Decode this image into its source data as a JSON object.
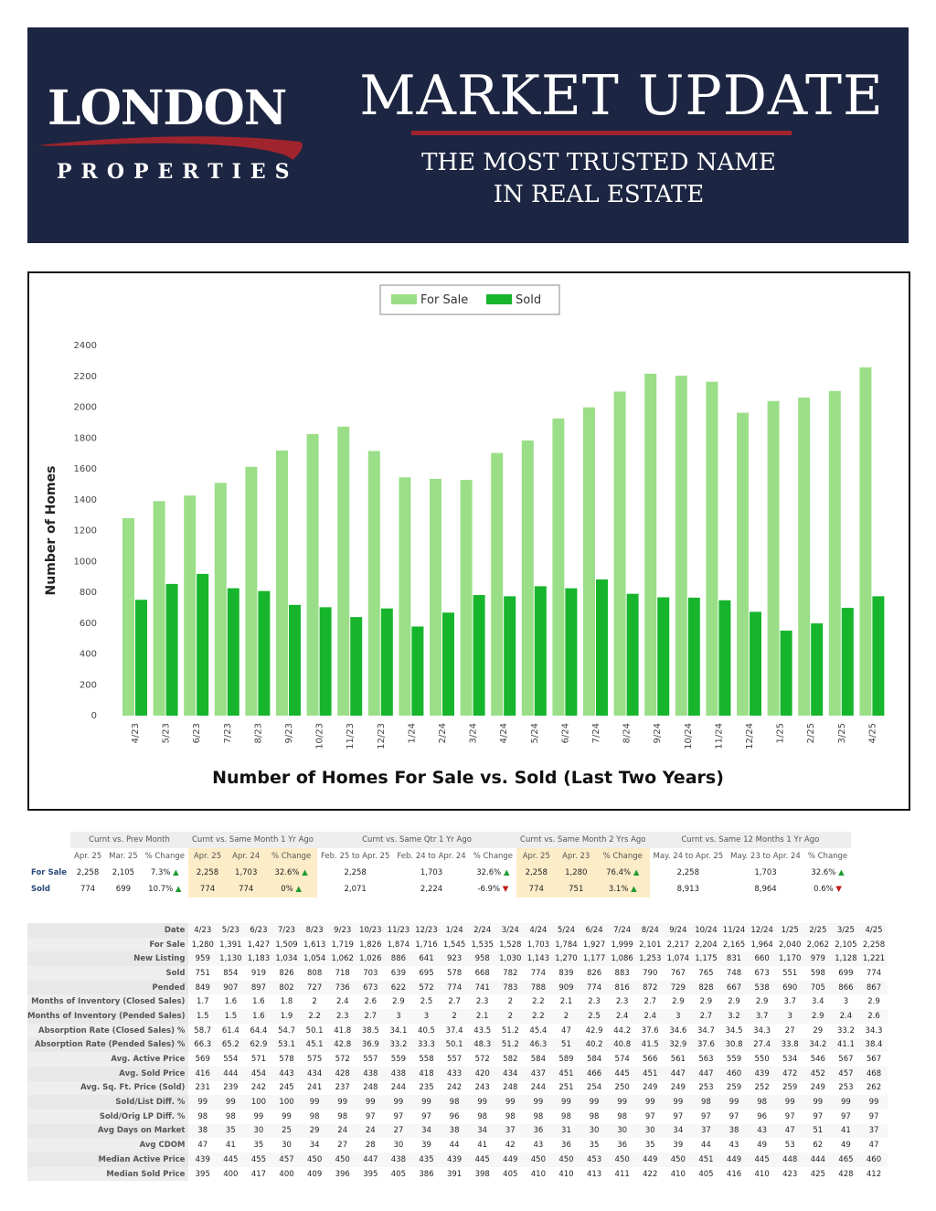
{
  "header": {
    "logo_main": "LONDON",
    "logo_sub": "PROPERTIES",
    "title": "MARKET UPDATE",
    "tagline_line1": "THE MOST TRUSTED NAME",
    "tagline_line2": "IN REAL ESTATE",
    "colors": {
      "banner": "#1c2541",
      "accent": "#a0242e"
    }
  },
  "chart_data": {
    "type": "bar",
    "title": "Number of Homes For Sale vs. Sold (Last Two Years)",
    "ylabel": "Number of Homes",
    "xlabel": "",
    "ylim": [
      0,
      2400
    ],
    "yticks": [
      0,
      200,
      400,
      600,
      800,
      1000,
      1200,
      1400,
      1600,
      1800,
      2000,
      2200,
      2400
    ],
    "legend_position": "top-center",
    "grid": false,
    "categories": [
      "4/23",
      "5/23",
      "6/23",
      "7/23",
      "8/23",
      "9/23",
      "10/23",
      "11/23",
      "12/23",
      "1/24",
      "2/24",
      "3/24",
      "4/24",
      "5/24",
      "6/24",
      "7/24",
      "8/24",
      "9/24",
      "10/24",
      "11/24",
      "12/24",
      "1/25",
      "2/25",
      "3/25",
      "4/25"
    ],
    "series": [
      {
        "name": "For Sale",
        "color": "#9bde88",
        "values": [
          1280,
          1391,
          1427,
          1509,
          1613,
          1719,
          1826,
          1874,
          1716,
          1545,
          1535,
          1528,
          1703,
          1784,
          1927,
          1999,
          2101,
          2217,
          2204,
          2165,
          1964,
          2040,
          2062,
          2105,
          2258
        ]
      },
      {
        "name": "Sold",
        "color": "#17b52c",
        "values": [
          751,
          854,
          919,
          826,
          808,
          718,
          703,
          639,
          695,
          578,
          668,
          782,
          774,
          839,
          826,
          883,
          790,
          767,
          765,
          748,
          673,
          551,
          598,
          699,
          774
        ]
      }
    ]
  },
  "comparison": {
    "groups": [
      "Curnt vs. Prev Month",
      "Curnt vs. Same Month 1 Yr Ago",
      "Curnt vs. Same Qtr 1 Yr Ago",
      "Curnt vs. Same Month 2 Yrs Ago",
      "Curnt vs. Same 12 Months 1 Yr Ago"
    ],
    "headers": [
      "Apr. 25",
      "Mar. 25",
      "% Change",
      "Apr. 25",
      "Apr. 24",
      "% Change",
      "Feb. 25 to Apr. 25",
      "Feb. 24 to Apr. 24",
      "% Change",
      "Apr. 25",
      "Apr. 23",
      "% Change",
      "May. 24 to Apr. 25",
      "May. 23 to Apr. 24",
      "% Change"
    ],
    "rows": [
      {
        "label": "For Sale",
        "cells": [
          "2,258",
          "2,105",
          "7.3%",
          "2,258",
          "1,703",
          "32.6%",
          "2,258",
          "1,703",
          "32.6%",
          "2,258",
          "1,280",
          "76.4%",
          "2,258",
          "1,703",
          "32.6%"
        ],
        "dirs": [
          "up",
          "up",
          "up",
          "up",
          "up"
        ]
      },
      {
        "label": "Sold",
        "cells": [
          "774",
          "699",
          "10.7%",
          "774",
          "774",
          "0%",
          "2,071",
          "2,224",
          "-6.9%",
          "774",
          "751",
          "3.1%",
          "8,913",
          "8,964",
          "0.6%"
        ],
        "dirs": [
          "up",
          "up",
          "down",
          "up",
          "down"
        ]
      }
    ]
  },
  "stats": {
    "header_label": "Date",
    "dates": [
      "4/23",
      "5/23",
      "6/23",
      "7/23",
      "8/23",
      "9/23",
      "10/23",
      "11/23",
      "12/23",
      "1/24",
      "2/24",
      "3/24",
      "4/24",
      "5/24",
      "6/24",
      "7/24",
      "8/24",
      "9/24",
      "10/24",
      "11/24",
      "12/24",
      "1/25",
      "2/25",
      "3/25",
      "4/25"
    ],
    "rows": [
      {
        "label": "For Sale",
        "values": [
          "1,280",
          "1,391",
          "1,427",
          "1,509",
          "1,613",
          "1,719",
          "1,826",
          "1,874",
          "1,716",
          "1,545",
          "1,535",
          "1,528",
          "1,703",
          "1,784",
          "1,927",
          "1,999",
          "2,101",
          "2,217",
          "2,204",
          "2,165",
          "1,964",
          "2,040",
          "2,062",
          "2,105",
          "2,258"
        ]
      },
      {
        "label": "New Listing",
        "values": [
          "959",
          "1,130",
          "1,183",
          "1,034",
          "1,054",
          "1,062",
          "1,026",
          "886",
          "641",
          "923",
          "958",
          "1,030",
          "1,143",
          "1,270",
          "1,177",
          "1,086",
          "1,253",
          "1,074",
          "1,175",
          "831",
          "660",
          "1,170",
          "979",
          "1,128",
          "1,221"
        ]
      },
      {
        "label": "Sold",
        "values": [
          "751",
          "854",
          "919",
          "826",
          "808",
          "718",
          "703",
          "639",
          "695",
          "578",
          "668",
          "782",
          "774",
          "839",
          "826",
          "883",
          "790",
          "767",
          "765",
          "748",
          "673",
          "551",
          "598",
          "699",
          "774"
        ]
      },
      {
        "label": "Pended",
        "values": [
          "849",
          "907",
          "897",
          "802",
          "727",
          "736",
          "673",
          "622",
          "572",
          "774",
          "741",
          "783",
          "788",
          "909",
          "774",
          "816",
          "872",
          "729",
          "828",
          "667",
          "538",
          "690",
          "705",
          "866",
          "867"
        ]
      },
      {
        "label": "Months of Inventory (Closed Sales)",
        "values": [
          "1.7",
          "1.6",
          "1.6",
          "1.8",
          "2",
          "2.4",
          "2.6",
          "2.9",
          "2.5",
          "2.7",
          "2.3",
          "2",
          "2.2",
          "2.1",
          "2.3",
          "2.3",
          "2.7",
          "2.9",
          "2.9",
          "2.9",
          "2.9",
          "3.7",
          "3.4",
          "3",
          "2.9"
        ]
      },
      {
        "label": "Months of Inventory (Pended Sales)",
        "values": [
          "1.5",
          "1.5",
          "1.6",
          "1.9",
          "2.2",
          "2.3",
          "2.7",
          "3",
          "3",
          "2",
          "2.1",
          "2",
          "2.2",
          "2",
          "2.5",
          "2.4",
          "2.4",
          "3",
          "2.7",
          "3.2",
          "3.7",
          "3",
          "2.9",
          "2.4",
          "2.6"
        ]
      },
      {
        "label": "Absorption Rate (Closed Sales) %",
        "values": [
          "58.7",
          "61.4",
          "64.4",
          "54.7",
          "50.1",
          "41.8",
          "38.5",
          "34.1",
          "40.5",
          "37.4",
          "43.5",
          "51.2",
          "45.4",
          "47",
          "42.9",
          "44.2",
          "37.6",
          "34.6",
          "34.7",
          "34.5",
          "34.3",
          "27",
          "29",
          "33.2",
          "34.3"
        ]
      },
      {
        "label": "Absorption Rate (Pended Sales) %",
        "values": [
          "66.3",
          "65.2",
          "62.9",
          "53.1",
          "45.1",
          "42.8",
          "36.9",
          "33.2",
          "33.3",
          "50.1",
          "48.3",
          "51.2",
          "46.3",
          "51",
          "40.2",
          "40.8",
          "41.5",
          "32.9",
          "37.6",
          "30.8",
          "27.4",
          "33.8",
          "34.2",
          "41.1",
          "38.4"
        ]
      },
      {
        "label": "Avg. Active Price",
        "values": [
          "569",
          "554",
          "571",
          "578",
          "575",
          "572",
          "557",
          "559",
          "558",
          "557",
          "572",
          "582",
          "584",
          "589",
          "584",
          "574",
          "566",
          "561",
          "563",
          "559",
          "550",
          "534",
          "546",
          "567",
          "567"
        ]
      },
      {
        "label": "Avg. Sold Price",
        "values": [
          "416",
          "444",
          "454",
          "443",
          "434",
          "428",
          "438",
          "438",
          "418",
          "433",
          "420",
          "434",
          "437",
          "451",
          "466",
          "445",
          "451",
          "447",
          "447",
          "460",
          "439",
          "472",
          "452",
          "457",
          "468"
        ]
      },
      {
        "label": "Avg. Sq. Ft. Price (Sold)",
        "values": [
          "231",
          "239",
          "242",
          "245",
          "241",
          "237",
          "248",
          "244",
          "235",
          "242",
          "243",
          "248",
          "244",
          "251",
          "254",
          "250",
          "249",
          "249",
          "253",
          "259",
          "252",
          "259",
          "249",
          "253",
          "262"
        ]
      },
      {
        "label": "Sold/List Diff. %",
        "values": [
          "99",
          "99",
          "100",
          "100",
          "99",
          "99",
          "99",
          "99",
          "99",
          "98",
          "99",
          "99",
          "99",
          "99",
          "99",
          "99",
          "99",
          "99",
          "98",
          "99",
          "98",
          "99",
          "99",
          "99",
          "99"
        ]
      },
      {
        "label": "Sold/Orig LP Diff. %",
        "values": [
          "98",
          "98",
          "99",
          "99",
          "98",
          "98",
          "97",
          "97",
          "97",
          "96",
          "98",
          "98",
          "98",
          "98",
          "98",
          "98",
          "97",
          "97",
          "97",
          "97",
          "96",
          "97",
          "97",
          "97",
          "97"
        ]
      },
      {
        "label": "Avg Days on Market",
        "values": [
          "38",
          "35",
          "30",
          "25",
          "29",
          "24",
          "24",
          "27",
          "34",
          "38",
          "34",
          "37",
          "36",
          "31",
          "30",
          "30",
          "30",
          "34",
          "37",
          "38",
          "43",
          "47",
          "51",
          "41",
          "37"
        ]
      },
      {
        "label": "Avg CDOM",
        "values": [
          "47",
          "41",
          "35",
          "30",
          "34",
          "27",
          "28",
          "30",
          "39",
          "44",
          "41",
          "42",
          "43",
          "36",
          "35",
          "36",
          "35",
          "39",
          "44",
          "43",
          "49",
          "53",
          "62",
          "49",
          "47"
        ]
      },
      {
        "label": "Median Active Price",
        "values": [
          "439",
          "445",
          "455",
          "457",
          "450",
          "450",
          "447",
          "438",
          "435",
          "439",
          "445",
          "449",
          "450",
          "450",
          "453",
          "450",
          "449",
          "450",
          "451",
          "449",
          "445",
          "448",
          "444",
          "465",
          "460"
        ]
      },
      {
        "label": "Median Sold Price",
        "values": [
          "395",
          "400",
          "417",
          "400",
          "409",
          "396",
          "395",
          "405",
          "386",
          "391",
          "398",
          "405",
          "410",
          "410",
          "413",
          "411",
          "422",
          "410",
          "405",
          "416",
          "410",
          "423",
          "425",
          "428",
          "412"
        ]
      }
    ]
  }
}
